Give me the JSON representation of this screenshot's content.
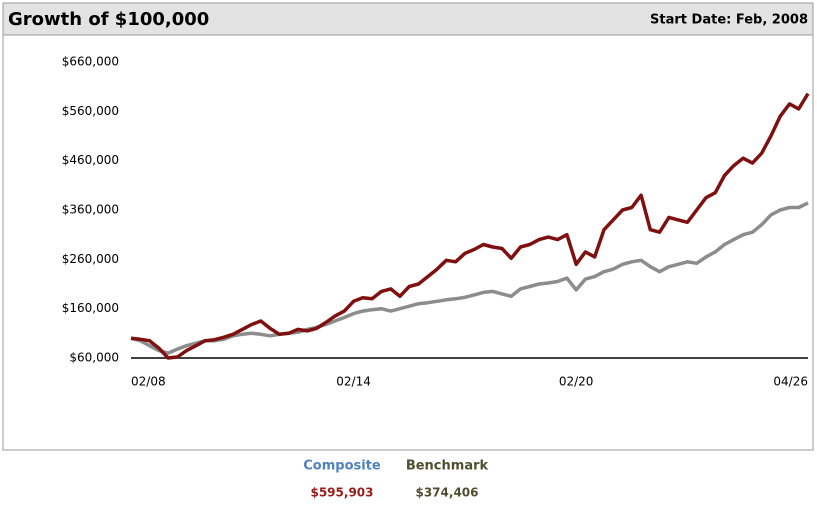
{
  "chart_data": {
    "type": "line",
    "title": "Growth of $100,000",
    "subtitle": "Start Date: Feb, 2008",
    "categories": [
      "02/08",
      null,
      null,
      null,
      null,
      null,
      null,
      null,
      null,
      null,
      null,
      null,
      null,
      null,
      null,
      null,
      null,
      null,
      null,
      null,
      null,
      null,
      null,
      null,
      "02/14",
      null,
      null,
      null,
      null,
      null,
      null,
      null,
      null,
      null,
      null,
      null,
      null,
      null,
      null,
      null,
      null,
      null,
      null,
      null,
      null,
      null,
      null,
      null,
      "02/20",
      null,
      null,
      null,
      null,
      null,
      null,
      null,
      null,
      null,
      null,
      null,
      null,
      null,
      null,
      null,
      null,
      null,
      null,
      null,
      null,
      null,
      null,
      null,
      null,
      "04/26"
    ],
    "series": [
      {
        "name": "Composite",
        "color": "#7f1010",
        "label_color": "#4f81bd",
        "value_color": "#9b1c1c",
        "final_label": "$595,903",
        "values": [
          100000,
          98000,
          95000,
          80000,
          60000,
          62000,
          75000,
          85000,
          95000,
          97000,
          102000,
          108000,
          118000,
          128000,
          135000,
          120000,
          108000,
          110000,
          118000,
          115000,
          120000,
          132000,
          145000,
          155000,
          175000,
          182000,
          180000,
          195000,
          200000,
          185000,
          205000,
          210000,
          225000,
          240000,
          258000,
          255000,
          272000,
          280000,
          290000,
          285000,
          282000,
          262000,
          285000,
          290000,
          300000,
          305000,
          300000,
          310000,
          250000,
          275000,
          265000,
          320000,
          340000,
          360000,
          365000,
          390000,
          320000,
          315000,
          345000,
          340000,
          335000,
          360000,
          385000,
          395000,
          430000,
          450000,
          465000,
          455000,
          475000,
          510000,
          550000,
          575000,
          565000,
          595903
        ]
      },
      {
        "name": "Benchmark",
        "color": "#8c8c8c",
        "label_color": "#4f4f2f",
        "value_color": "#4f4f2f",
        "final_label": "$374,406",
        "values": [
          100000,
          95000,
          85000,
          75000,
          70000,
          78000,
          85000,
          90000,
          95000,
          95000,
          98000,
          105000,
          108000,
          110000,
          108000,
          105000,
          108000,
          110000,
          112000,
          118000,
          122000,
          128000,
          135000,
          142000,
          150000,
          155000,
          158000,
          160000,
          155000,
          160000,
          165000,
          170000,
          172000,
          175000,
          178000,
          180000,
          183000,
          188000,
          193000,
          195000,
          190000,
          185000,
          200000,
          205000,
          210000,
          212000,
          215000,
          222000,
          198000,
          220000,
          225000,
          235000,
          240000,
          250000,
          255000,
          258000,
          245000,
          235000,
          245000,
          250000,
          255000,
          252000,
          265000,
          275000,
          290000,
          300000,
          310000,
          315000,
          330000,
          350000,
          360000,
          365000,
          365000,
          374406
        ]
      }
    ],
    "ylim": [
      60000,
      660000
    ],
    "yticks": [
      {
        "value": 60000,
        "label": "$60,000"
      },
      {
        "value": 160000,
        "label": "$160,000"
      },
      {
        "value": 260000,
        "label": "$260,000"
      },
      {
        "value": 360000,
        "label": "$360,000"
      },
      {
        "value": 460000,
        "label": "$460,000"
      },
      {
        "value": 560000,
        "label": "$560,000"
      },
      {
        "value": 660000,
        "label": "$660,000"
      }
    ],
    "grid": false
  }
}
